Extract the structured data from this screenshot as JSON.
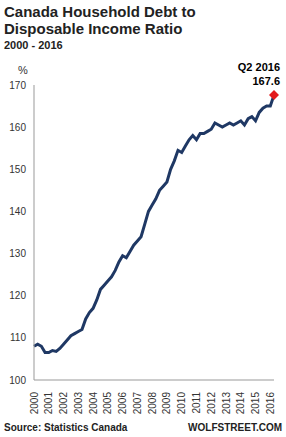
{
  "chart_data": {
    "type": "line",
    "title": "Canada Household Debt to Disposable Income Ratio",
    "subtitle": "2000 - 2016",
    "y_label": "%",
    "source": "Source: Statistics Canada",
    "credit": "WOLFSTREET.COM",
    "categories": [
      "2000",
      null,
      null,
      null,
      "2001",
      null,
      null,
      null,
      "2002",
      null,
      null,
      null,
      "2003",
      null,
      null,
      null,
      "2004",
      null,
      null,
      null,
      "2005",
      null,
      null,
      null,
      "2006",
      null,
      null,
      null,
      "2007",
      null,
      null,
      null,
      "2008",
      null,
      null,
      null,
      "2009",
      null,
      null,
      null,
      "2010",
      null,
      null,
      null,
      "2011",
      null,
      null,
      null,
      "2012",
      null,
      null,
      null,
      "2013",
      null,
      null,
      null,
      "2014",
      null,
      null,
      null,
      "2015",
      null,
      null,
      null,
      "2016",
      null
    ],
    "values": [
      108,
      108.5,
      108,
      106.5,
      106.5,
      107,
      106.8,
      107.5,
      108.5,
      109.5,
      110.5,
      111,
      111.5,
      112,
      114.5,
      116,
      117,
      119,
      121.5,
      122.5,
      123.5,
      124.5,
      126,
      128,
      129.5,
      129,
      130.5,
      132,
      133,
      134,
      137,
      140,
      141.5,
      143,
      145,
      146,
      147,
      150,
      152,
      154.5,
      154,
      155.5,
      157,
      158,
      157,
      158.5,
      158.5,
      159,
      159.5,
      161,
      160.5,
      160,
      160.5,
      161,
      160.5,
      161,
      161.5,
      160.5,
      162,
      162.5,
      161.5,
      163.5,
      164.5,
      165,
      165,
      167.6
    ],
    "color": "#1f3864",
    "ylim": [
      100,
      170
    ],
    "yticks": [
      100,
      110,
      120,
      130,
      140,
      150,
      160,
      170
    ],
    "grid": false,
    "annotation": {
      "text": "Q2 2016",
      "value": 167.6,
      "color": "#e31a1c",
      "marker": "diamond"
    }
  }
}
